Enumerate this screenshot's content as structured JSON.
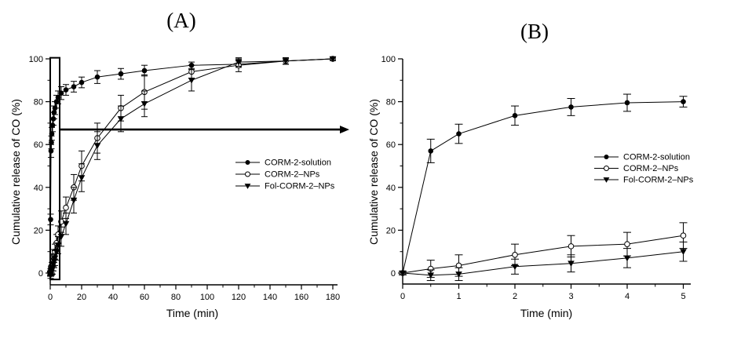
{
  "figure": {
    "background": "#ffffff",
    "ink_color": "#000000",
    "description": "Two-panel line chart of cumulative CO release over time; panel B expands the boxed 0-5 min region of panel A"
  },
  "chart_data": [
    {
      "type": "line",
      "panel": "A",
      "title": "(A)",
      "xlabel": "Time (min)",
      "ylabel": "Cumulative release of CO (%)",
      "xlim": [
        0,
        180
      ],
      "ylim": [
        0,
        100
      ],
      "grid": false,
      "xticks": [
        0,
        20,
        40,
        60,
        80,
        100,
        120,
        140,
        160,
        180
      ],
      "yticks": [
        0,
        20,
        40,
        60,
        80,
        100
      ],
      "legend_position": "right-middle",
      "x": [
        0,
        0.25,
        0.5,
        0.75,
        1,
        1.5,
        2,
        2.5,
        3,
        4,
        5,
        7,
        10,
        15,
        20,
        30,
        45,
        60,
        90,
        120,
        150,
        180
      ],
      "series": [
        {
          "name": "CORM-2-solution",
          "marker": "filled-circle",
          "values": [
            0,
            25,
            57,
            61,
            65,
            69,
            72,
            75,
            77,
            80,
            82,
            84,
            85.5,
            87,
            89,
            91.5,
            93,
            94.5,
            97,
            97.5,
            99,
            100
          ],
          "errors": [
            1,
            2.5,
            3,
            3,
            3,
            3,
            3,
            3,
            3,
            3,
            3,
            3,
            2.5,
            2.5,
            2.5,
            3,
            2.5,
            2.5,
            1.5,
            1.5,
            1.5,
            0.8
          ]
        },
        {
          "name": "CORM-2–NPs",
          "marker": "open-circle",
          "values": [
            0,
            0.5,
            1,
            1.5,
            2.5,
            4,
            6,
            8,
            10,
            14,
            18,
            24,
            30.5,
            40,
            50,
            63,
            77,
            84.5,
            94,
            97,
            99,
            100
          ],
          "errors": [
            1,
            1.5,
            2,
            2,
            2.5,
            3,
            3,
            3,
            3.5,
            4,
            4,
            5,
            5,
            6,
            7,
            7,
            6,
            8,
            3,
            3,
            1.5,
            0.8
          ]
        },
        {
          "name": "Fol-CORM-2–NPs",
          "marker": "filled-triangle-down",
          "values": [
            -0.5,
            -1,
            0.5,
            1,
            1.5,
            2.5,
            4,
            5.5,
            7,
            10,
            13,
            17,
            23,
            34,
            44.5,
            59.5,
            72,
            79,
            90,
            98.5,
            99,
            100
          ],
          "errors": [
            1,
            1.5,
            2,
            2,
            2.5,
            3,
            3,
            3,
            3.5,
            4,
            4,
            4.5,
            5,
            6,
            6.5,
            6.5,
            6,
            6,
            5,
            2,
            1.5,
            0.8
          ]
        }
      ],
      "annotations": {
        "highlight_box": {
          "x0": 0,
          "x1": 6,
          "y0": -3,
          "y1": 100.5,
          "meaning": "region expanded in panel B"
        },
        "arrow": {
          "y": 67,
          "x_start": 6,
          "x_end": 185,
          "direction": "right",
          "extends_past_axis": true
        }
      }
    },
    {
      "type": "line",
      "panel": "B",
      "title": "(B)",
      "xlabel": "Time (min)",
      "ylabel": "Cumulative release of CO (%)",
      "xlim": [
        0,
        5
      ],
      "ylim": [
        0,
        100
      ],
      "grid": false,
      "xticks": [
        0,
        1,
        2,
        3,
        4,
        5
      ],
      "yticks": [
        0,
        20,
        40,
        60,
        80,
        100
      ],
      "legend_position": "right-middle",
      "x": [
        0,
        0.5,
        1,
        2,
        3,
        4,
        5
      ],
      "series": [
        {
          "name": "CORM-2-solution",
          "marker": "filled-circle",
          "values": [
            0,
            57,
            65,
            73.5,
            77.5,
            79.5,
            80
          ],
          "errors": [
            0.8,
            5.5,
            4.5,
            4.5,
            4,
            4,
            2.5
          ]
        },
        {
          "name": "CORM-2–NPs",
          "marker": "open-circle",
          "values": [
            0,
            2,
            3.5,
            8.5,
            12.5,
            13.5,
            17.5
          ],
          "errors": [
            0.8,
            4,
            5,
            5,
            5,
            5.5,
            6
          ]
        },
        {
          "name": "Fol-CORM-2–NPs",
          "marker": "filled-triangle-down",
          "values": [
            0,
            -1,
            -0.5,
            3,
            4.5,
            7,
            10
          ],
          "errors": [
            0.8,
            2.5,
            3,
            3.5,
            4,
            4.5,
            4.5
          ]
        }
      ]
    }
  ]
}
